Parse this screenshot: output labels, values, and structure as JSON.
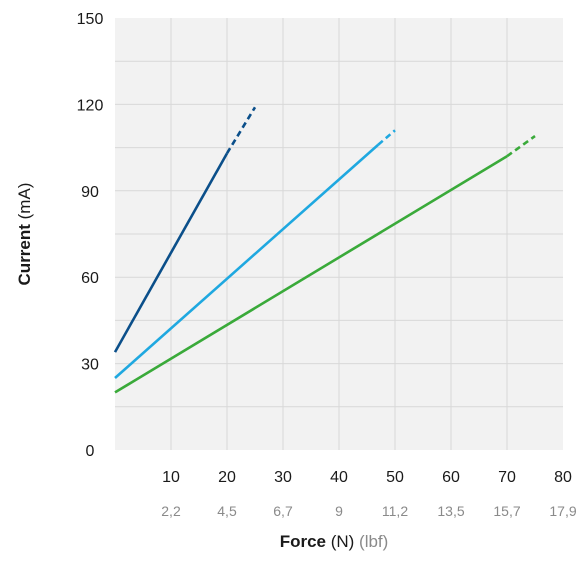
{
  "chart_data": {
    "type": "line",
    "xlabel": {
      "bold": "Force",
      "unit": " (N)",
      "secondary_unit": " (lbf)"
    },
    "ylabel": {
      "bold": "Current",
      "unit": "  (mA)"
    },
    "xlim": [
      0,
      80
    ],
    "ylim": [
      0,
      150
    ],
    "x_ticks": [
      10,
      20,
      30,
      40,
      50,
      60,
      70,
      80
    ],
    "x_ticks_secondary": [
      "2,2",
      "4,5",
      "6,7",
      "9",
      "11,2",
      "13,5",
      "15,7",
      "17,9"
    ],
    "y_ticks": [
      0,
      30,
      60,
      90,
      120,
      150
    ],
    "grid": true,
    "series": [
      {
        "color": "#0b4f8a",
        "solid": [
          [
            0,
            34
          ],
          [
            20,
            103
          ]
        ],
        "dashed": [
          [
            20,
            103
          ],
          [
            25,
            119
          ]
        ]
      },
      {
        "color": "#1fa8e0",
        "solid": [
          [
            0,
            25
          ],
          [
            47,
            106
          ]
        ],
        "dashed": [
          [
            47,
            106
          ],
          [
            50,
            111
          ]
        ]
      },
      {
        "color": "#3aaa3a",
        "solid": [
          [
            0,
            20
          ],
          [
            70,
            102
          ]
        ],
        "dashed": [
          [
            70,
            102
          ],
          [
            75,
            109
          ]
        ]
      }
    ]
  }
}
